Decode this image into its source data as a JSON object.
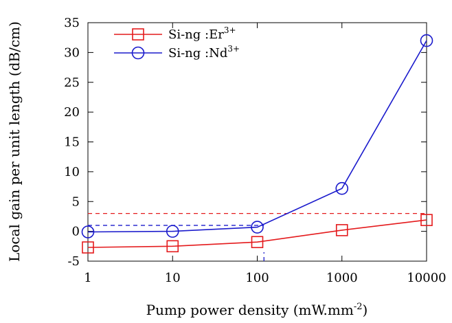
{
  "chart_data": {
    "type": "line",
    "title": "",
    "xlabel": "Pump power density (mW.mm",
    "xlabel_sup": "-2",
    "xlabel_tail": ")",
    "ylabel": "Local gain per unit length (dB/cm)",
    "x_scale": "log",
    "xlim": [
      1,
      10000
    ],
    "ylim": [
      -5,
      35
    ],
    "x_ticks": [
      1,
      10,
      100,
      1000,
      10000
    ],
    "x_tick_labels": [
      "1",
      "10",
      "100",
      "1000",
      "10000"
    ],
    "y_ticks": [
      -5,
      0,
      5,
      10,
      15,
      20,
      25,
      30,
      35
    ],
    "y_tick_labels": [
      "-5",
      "0",
      "5",
      "10",
      "15",
      "20",
      "25",
      "30",
      "35"
    ],
    "grid": false,
    "legend_position": "top-left",
    "x": [
      1,
      10,
      100,
      1000,
      10000
    ],
    "series": [
      {
        "name": "Si-ng :Er",
        "name_sup": "3+",
        "color": "#e41a1c",
        "marker": "square",
        "values": [
          -2.7,
          -2.5,
          -1.8,
          0.2,
          1.9
        ]
      },
      {
        "name": "Si-ng :Nd",
        "name_sup": "3+",
        "color": "#1a1acc",
        "marker": "circle",
        "values": [
          -0.1,
          0.0,
          0.7,
          7.2,
          32.0
        ]
      }
    ],
    "reference_lines": [
      {
        "orientation": "horizontal",
        "y": 3.0,
        "x_from": 1,
        "x_to": 10000,
        "color": "#e41a1c",
        "style": "dashed"
      },
      {
        "orientation": "horizontal",
        "y": 1.0,
        "x_from": 1,
        "x_to": 120,
        "color": "#1a1acc",
        "style": "dashed"
      },
      {
        "orientation": "vertical",
        "x": 120,
        "y_from": -5,
        "y_to": -3.5,
        "color": "#1a1acc",
        "style": "dashed"
      }
    ]
  }
}
